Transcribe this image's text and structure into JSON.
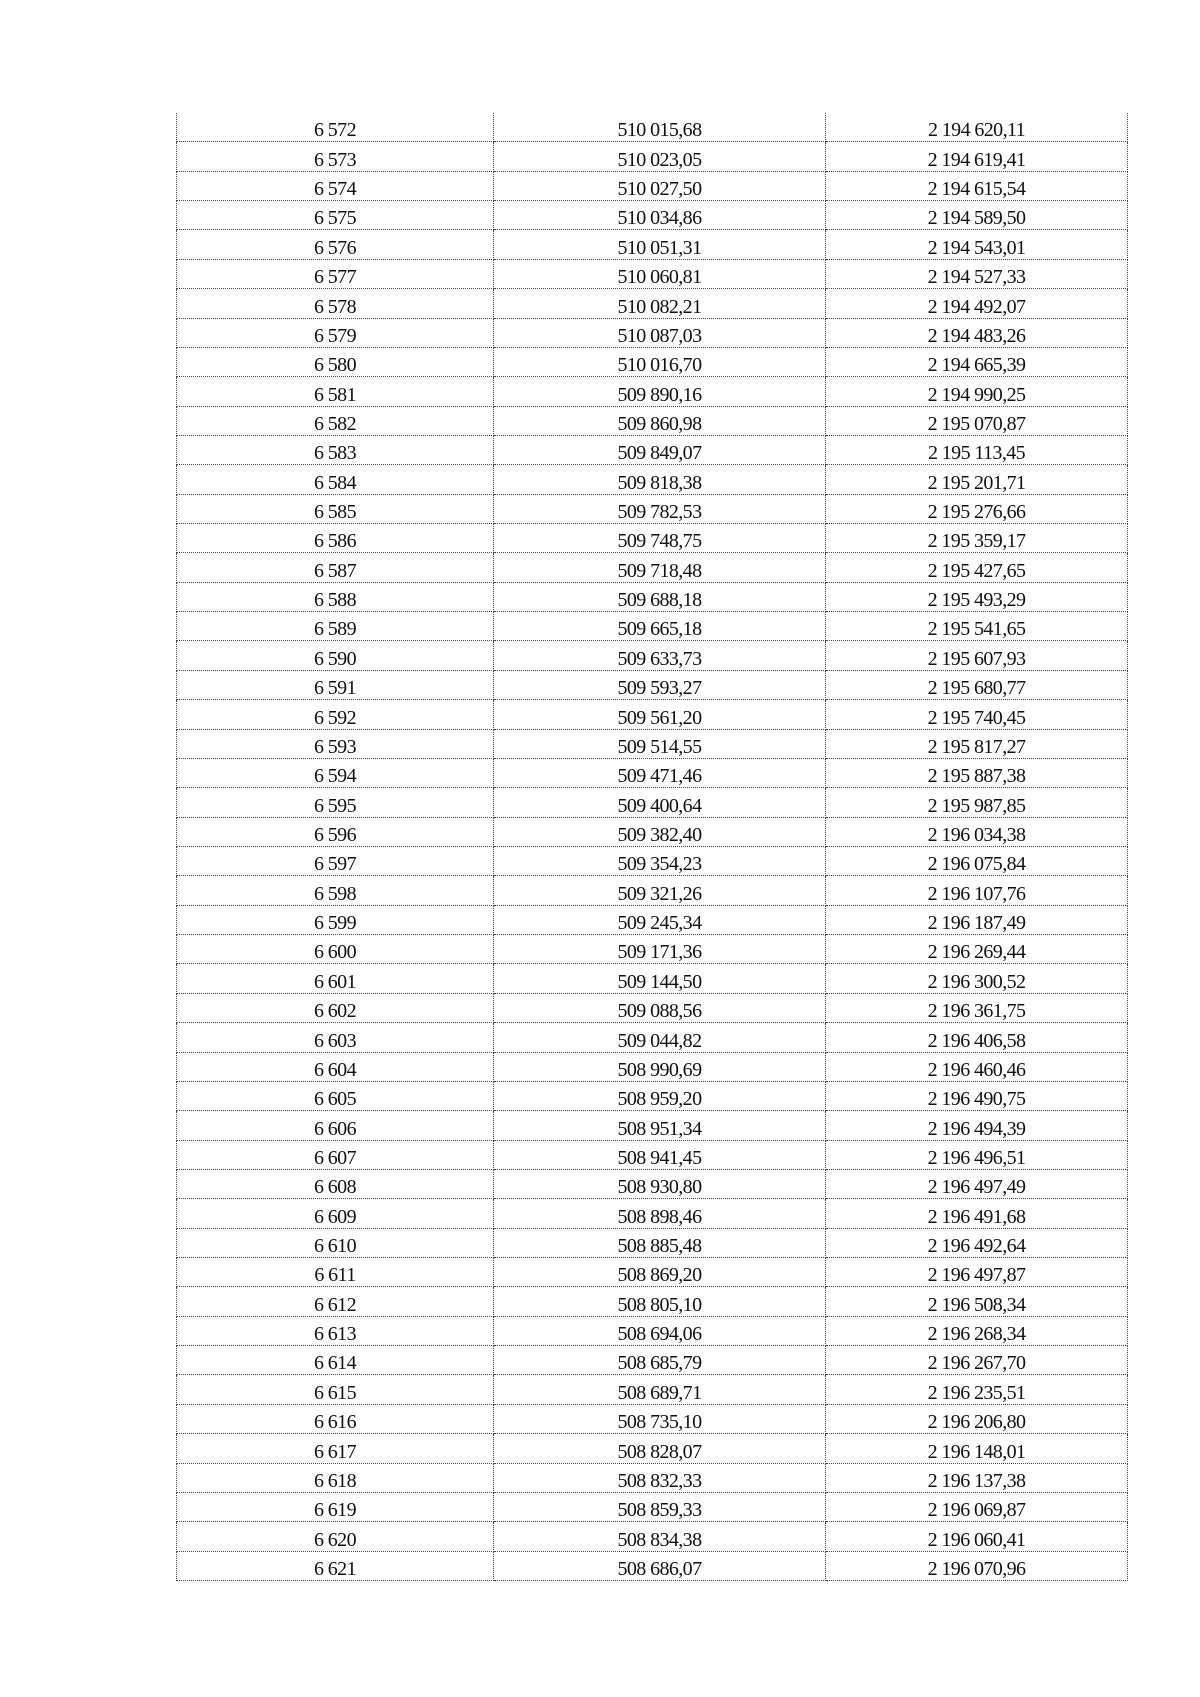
{
  "table": {
    "rows": [
      [
        "6 572",
        "510 015,68",
        "2 194 620,11"
      ],
      [
        "6 573",
        "510 023,05",
        "2 194 619,41"
      ],
      [
        "6 574",
        "510 027,50",
        "2 194 615,54"
      ],
      [
        "6 575",
        "510 034,86",
        "2 194 589,50"
      ],
      [
        "6 576",
        "510 051,31",
        "2 194 543,01"
      ],
      [
        "6 577",
        "510 060,81",
        "2 194 527,33"
      ],
      [
        "6 578",
        "510 082,21",
        "2 194 492,07"
      ],
      [
        "6 579",
        "510 087,03",
        "2 194 483,26"
      ],
      [
        "6 580",
        "510 016,70",
        "2 194 665,39"
      ],
      [
        "6 581",
        "509 890,16",
        "2 194 990,25"
      ],
      [
        "6 582",
        "509 860,98",
        "2 195 070,87"
      ],
      [
        "6 583",
        "509 849,07",
        "2 195 113,45"
      ],
      [
        "6 584",
        "509 818,38",
        "2 195 201,71"
      ],
      [
        "6 585",
        "509 782,53",
        "2 195 276,66"
      ],
      [
        "6 586",
        "509 748,75",
        "2 195 359,17"
      ],
      [
        "6 587",
        "509 718,48",
        "2 195 427,65"
      ],
      [
        "6 588",
        "509 688,18",
        "2 195 493,29"
      ],
      [
        "6 589",
        "509 665,18",
        "2 195 541,65"
      ],
      [
        "6 590",
        "509 633,73",
        "2 195 607,93"
      ],
      [
        "6 591",
        "509 593,27",
        "2 195 680,77"
      ],
      [
        "6 592",
        "509 561,20",
        "2 195 740,45"
      ],
      [
        "6 593",
        "509 514,55",
        "2 195 817,27"
      ],
      [
        "6 594",
        "509 471,46",
        "2 195 887,38"
      ],
      [
        "6 595",
        "509 400,64",
        "2 195 987,85"
      ],
      [
        "6 596",
        "509 382,40",
        "2 196 034,38"
      ],
      [
        "6 597",
        "509 354,23",
        "2 196 075,84"
      ],
      [
        "6 598",
        "509 321,26",
        "2 196 107,76"
      ],
      [
        "6 599",
        "509 245,34",
        "2 196 187,49"
      ],
      [
        "6 600",
        "509 171,36",
        "2 196 269,44"
      ],
      [
        "6 601",
        "509 144,50",
        "2 196 300,52"
      ],
      [
        "6 602",
        "509 088,56",
        "2 196 361,75"
      ],
      [
        "6 603",
        "509 044,82",
        "2 196 406,58"
      ],
      [
        "6 604",
        "508 990,69",
        "2 196 460,46"
      ],
      [
        "6 605",
        "508 959,20",
        "2 196 490,75"
      ],
      [
        "6 606",
        "508 951,34",
        "2 196 494,39"
      ],
      [
        "6 607",
        "508 941,45",
        "2 196 496,51"
      ],
      [
        "6 608",
        "508 930,80",
        "2 196 497,49"
      ],
      [
        "6 609",
        "508 898,46",
        "2 196 491,68"
      ],
      [
        "6 610",
        "508 885,48",
        "2 196 492,64"
      ],
      [
        "6 611",
        "508 869,20",
        "2 196 497,87"
      ],
      [
        "6 612",
        "508 805,10",
        "2 196 508,34"
      ],
      [
        "6 613",
        "508 694,06",
        "2 196 268,34"
      ],
      [
        "6 614",
        "508 685,79",
        "2 196 267,70"
      ],
      [
        "6 615",
        "508 689,71",
        "2 196 235,51"
      ],
      [
        "6 616",
        "508 735,10",
        "2 196 206,80"
      ],
      [
        "6 617",
        "508 828,07",
        "2 196 148,01"
      ],
      [
        "6 618",
        "508 832,33",
        "2 196 137,38"
      ],
      [
        "6 619",
        "508 859,33",
        "2 196 069,87"
      ],
      [
        "6 620",
        "508 834,38",
        "2 196 060,41"
      ],
      [
        "6 621",
        "508 686,07",
        "2 196 070,96"
      ]
    ]
  }
}
